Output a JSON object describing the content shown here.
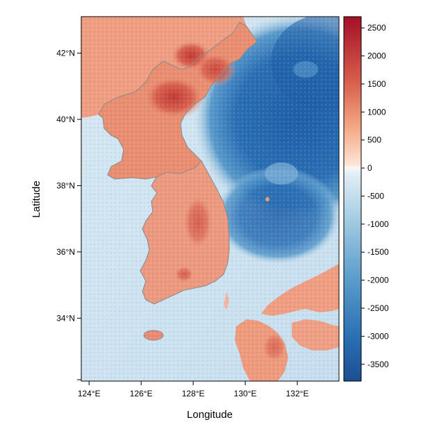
{
  "map": {
    "xlabel": "Longitude",
    "ylabel": "Latitude",
    "x_ticks": [
      "124°E",
      "126°E",
      "128°E",
      "130°E",
      "132°E"
    ],
    "y_ticks": [
      "34°N",
      "36°N",
      "38°N",
      "40°N",
      "42°N"
    ],
    "lon_range": [
      123.7,
      133.6
    ],
    "lat_range": [
      32.1,
      43.1
    ],
    "x_tick_values": [
      124,
      126,
      128,
      130,
      132
    ],
    "y_tick_values": [
      34,
      36,
      38,
      40,
      42
    ],
    "colors": {
      "land_high": "#b2182b",
      "land_mid": "#ef8a62",
      "land_low": "#fddbc7",
      "zero": "#f7f7f7",
      "sea_shallow": "#d1e5f0",
      "sea_mid": "#67a9cf",
      "sea_deep": "#2166ac",
      "coastline": "#8c8c8c"
    }
  },
  "colorbar": {
    "labels": [
      "2500",
      "2000",
      "1500",
      "1000",
      "500",
      "0",
      "-500",
      "-1000",
      "-1500",
      "-2000",
      "-2500",
      "-3000",
      "-3500"
    ],
    "values": [
      2500,
      2000,
      1500,
      1000,
      500,
      0,
      -500,
      -1000,
      -1500,
      -2000,
      -2500,
      -3000,
      -3500
    ],
    "range": [
      -3800,
      2700
    ]
  }
}
